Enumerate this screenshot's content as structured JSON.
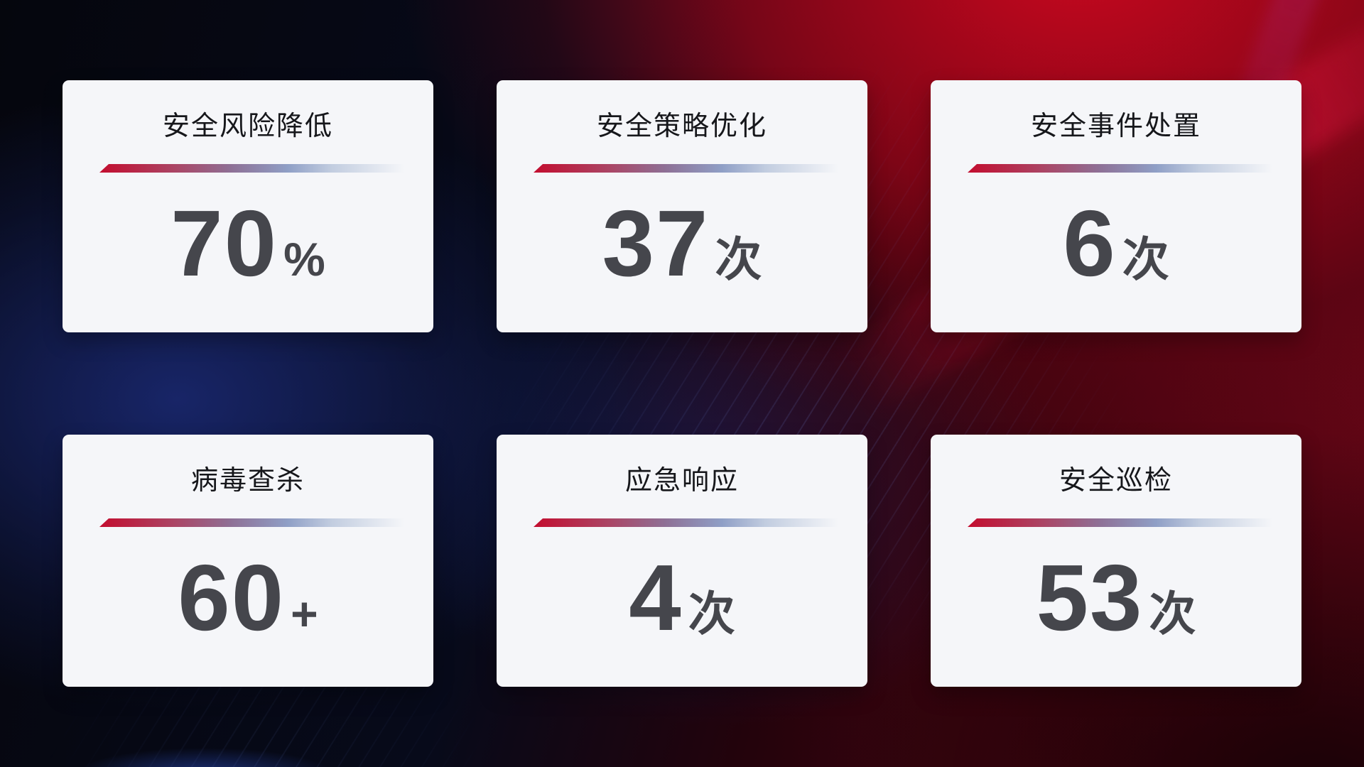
{
  "dashboard": {
    "cards": [
      {
        "title": "安全风险降低",
        "value": "70",
        "unit": "%"
      },
      {
        "title": "安全策略优化",
        "value": "37",
        "unit": "次"
      },
      {
        "title": "安全事件处置",
        "value": "6",
        "unit": "次"
      },
      {
        "title": "病毒查杀",
        "value": "60",
        "unit": "+"
      },
      {
        "title": "应急响应",
        "value": "4",
        "unit": "次"
      },
      {
        "title": "安全巡检",
        "value": "53",
        "unit": "次"
      }
    ]
  },
  "colors": {
    "card_bg": "#f5f6f9",
    "title_color": "#16171b",
    "value_color": "#45464c",
    "divider_c1": "#c30d2f",
    "divider_c2": "#ab4565",
    "divider_c3": "#8e7096",
    "divider_c4": "#8f9fc6",
    "divider_c5": "#c2cde0",
    "bg_base": "#05060d",
    "bg_blue_glow": "#1b2a76",
    "bg_red_bright": "#c00722",
    "bg_red_dark": "#40030e"
  }
}
